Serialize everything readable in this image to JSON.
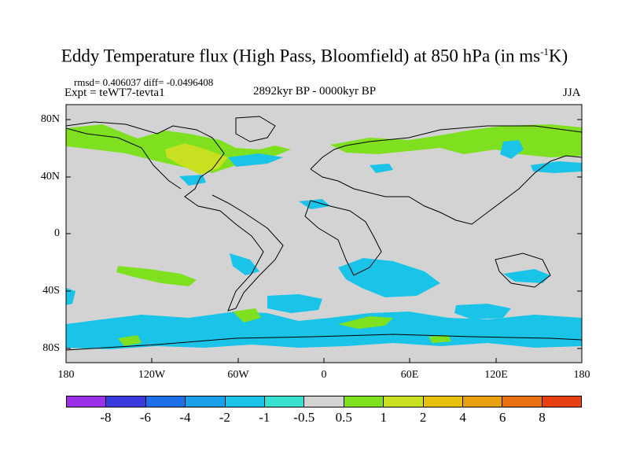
{
  "header": {
    "title_main": "Eddy Temperature flux (High Pass, Bloomfield) at 850 hPa (in ms",
    "title_sup": "-1",
    "title_end": "K)",
    "stats": "rmsd= 0.406037 diff= -0.0496408",
    "expt": "Expt = teWT7-tevta1",
    "period": "2892kyr BP - 0000kyr BP",
    "season": "JJA"
  },
  "axes": {
    "lat_labels": [
      "80N",
      "40N",
      "0",
      "40S",
      "80S"
    ],
    "lon_labels": [
      "180",
      "120W",
      "60W",
      "0",
      "60E",
      "120E",
      "180"
    ]
  },
  "colorbar": {
    "colors": [
      "#9b30e8",
      "#3a3ae0",
      "#1f6fe8",
      "#1aa0e8",
      "#19c4e8",
      "#38e0d0",
      "#d3d3d3",
      "#7fe020",
      "#c8e020",
      "#e8c010",
      "#e8a010",
      "#e87010",
      "#e84010"
    ],
    "labels": [
      "-8",
      "-6",
      "-4",
      "-2",
      "-1",
      "-0.5",
      "0.5",
      "1",
      "2",
      "4",
      "6",
      "8"
    ]
  },
  "map": {
    "background": "#d3d3d3",
    "levels": {
      "light_green": "#7fe020",
      "yellow_green": "#c8e020",
      "cyan": "#19c4e8",
      "aqua": "#38e0d0"
    }
  }
}
